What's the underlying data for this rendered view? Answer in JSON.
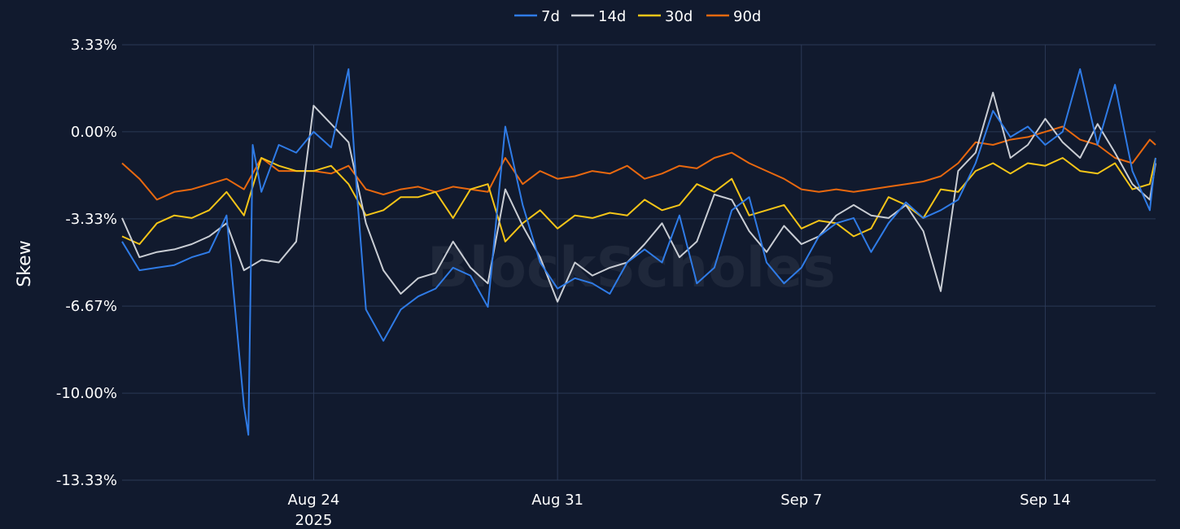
{
  "watermark": "BlockScholes",
  "chart_data": {
    "type": "line",
    "title": "",
    "xlabel": "",
    "ylabel": "Skew",
    "ylim": [
      -13.33,
      3.33
    ],
    "xlim": [
      "2025-08-18T12:00",
      "2025-09-17T04:00"
    ],
    "y_ticks": [
      3.33,
      0.0,
      -3.33,
      -6.67,
      -10.0,
      -13.33
    ],
    "y_tick_labels": [
      "3.33%",
      "0.00%",
      "-3.33%",
      "-6.67%",
      "-10.00%",
      "-13.33%"
    ],
    "x_ticks": [
      "2025-08-24",
      "2025-08-31",
      "2025-09-07",
      "2025-09-14"
    ],
    "x_tick_labels": [
      "Aug 24",
      "Aug 31",
      "Sep 7",
      "Sep 14"
    ],
    "x_tick_sublabel": "2025",
    "grid": true,
    "legend_position": "top-center",
    "colors": {
      "background": "#111a2e",
      "grid": "#2b3956",
      "7d": "#2f7be6",
      "14d": "#c9cdd4",
      "30d": "#f5c518",
      "90d": "#e8680f"
    },
    "series": [
      {
        "name": "7d",
        "x": [
          "2025-08-18T12:00",
          "2025-08-19T00:00",
          "2025-08-19T12:00",
          "2025-08-20T00:00",
          "2025-08-20T12:00",
          "2025-08-21T00:00",
          "2025-08-21T12:00",
          "2025-08-22T00:00",
          "2025-08-22T03:00",
          "2025-08-22T06:00",
          "2025-08-22T12:00",
          "2025-08-23T00:00",
          "2025-08-23T12:00",
          "2025-08-24T00:00",
          "2025-08-24T12:00",
          "2025-08-25T00:00",
          "2025-08-25T06:00",
          "2025-08-25T12:00",
          "2025-08-26T00:00",
          "2025-08-26T12:00",
          "2025-08-27T00:00",
          "2025-08-27T12:00",
          "2025-08-28T00:00",
          "2025-08-28T12:00",
          "2025-08-29T00:00",
          "2025-08-29T12:00",
          "2025-08-30T00:00",
          "2025-08-30T12:00",
          "2025-08-31T00:00",
          "2025-08-31T12:00",
          "2025-09-01T00:00",
          "2025-09-01T12:00",
          "2025-09-02T00:00",
          "2025-09-02T12:00",
          "2025-09-03T00:00",
          "2025-09-03T12:00",
          "2025-09-04T00:00",
          "2025-09-04T12:00",
          "2025-09-05T00:00",
          "2025-09-05T12:00",
          "2025-09-06T00:00",
          "2025-09-06T12:00",
          "2025-09-07T00:00",
          "2025-09-07T12:00",
          "2025-09-08T00:00",
          "2025-09-08T12:00",
          "2025-09-09T00:00",
          "2025-09-09T12:00",
          "2025-09-10T00:00",
          "2025-09-10T12:00",
          "2025-09-11T00:00",
          "2025-09-11T12:00",
          "2025-09-12T00:00",
          "2025-09-12T12:00",
          "2025-09-13T00:00",
          "2025-09-13T12:00",
          "2025-09-14T00:00",
          "2025-09-14T12:00",
          "2025-09-15T00:00",
          "2025-09-15T12:00",
          "2025-09-16T00:00",
          "2025-09-16T12:00",
          "2025-09-17T00:00",
          "2025-09-17T04:00"
        ],
        "values": [
          -4.2,
          -5.3,
          -5.2,
          -5.1,
          -4.8,
          -4.6,
          -3.2,
          -10.5,
          -11.6,
          -0.5,
          -2.3,
          -0.5,
          -0.8,
          0.0,
          -0.6,
          2.4,
          -2.5,
          -6.8,
          -8.0,
          -6.8,
          -6.3,
          -6.0,
          -5.2,
          -5.5,
          -6.7,
          0.2,
          -2.8,
          -5.0,
          -6.0,
          -5.6,
          -5.8,
          -6.2,
          -5.0,
          -4.5,
          -5.0,
          -3.2,
          -5.8,
          -5.2,
          -3.0,
          -2.5,
          -5.0,
          -5.8,
          -5.2,
          -4.0,
          -3.5,
          -3.3,
          -4.6,
          -3.5,
          -2.7,
          -3.3,
          -3.0,
          -2.6,
          -1.2,
          0.8,
          -0.2,
          0.2,
          -0.5,
          0.0,
          2.4,
          -0.5,
          1.8,
          -1.5,
          -3.0,
          -1.0
        ]
      },
      {
        "name": "14d",
        "x": [
          "2025-08-18T12:00",
          "2025-08-19T00:00",
          "2025-08-19T12:00",
          "2025-08-20T00:00",
          "2025-08-20T12:00",
          "2025-08-21T00:00",
          "2025-08-21T12:00",
          "2025-08-22T00:00",
          "2025-08-22T12:00",
          "2025-08-23T00:00",
          "2025-08-23T12:00",
          "2025-08-24T00:00",
          "2025-08-24T12:00",
          "2025-08-25T00:00",
          "2025-08-25T12:00",
          "2025-08-26T00:00",
          "2025-08-26T12:00",
          "2025-08-27T00:00",
          "2025-08-27T12:00",
          "2025-08-28T00:00",
          "2025-08-28T12:00",
          "2025-08-29T00:00",
          "2025-08-29T12:00",
          "2025-08-30T00:00",
          "2025-08-30T12:00",
          "2025-08-31T00:00",
          "2025-08-31T12:00",
          "2025-09-01T00:00",
          "2025-09-01T12:00",
          "2025-09-02T00:00",
          "2025-09-02T12:00",
          "2025-09-03T00:00",
          "2025-09-03T12:00",
          "2025-09-04T00:00",
          "2025-09-04T12:00",
          "2025-09-05T00:00",
          "2025-09-05T12:00",
          "2025-09-06T00:00",
          "2025-09-06T12:00",
          "2025-09-07T00:00",
          "2025-09-07T12:00",
          "2025-09-08T00:00",
          "2025-09-08T12:00",
          "2025-09-09T00:00",
          "2025-09-09T12:00",
          "2025-09-10T00:00",
          "2025-09-10T12:00",
          "2025-09-11T00:00",
          "2025-09-11T12:00",
          "2025-09-12T00:00",
          "2025-09-12T12:00",
          "2025-09-13T00:00",
          "2025-09-13T12:00",
          "2025-09-14T00:00",
          "2025-09-14T12:00",
          "2025-09-15T00:00",
          "2025-09-15T12:00",
          "2025-09-16T00:00",
          "2025-09-16T12:00",
          "2025-09-17T00:00",
          "2025-09-17T04:00"
        ],
        "values": [
          -3.3,
          -4.8,
          -4.6,
          -4.5,
          -4.3,
          -4.0,
          -3.5,
          -5.3,
          -4.9,
          -5.0,
          -4.2,
          1.0,
          0.3,
          -0.4,
          -3.5,
          -5.3,
          -6.2,
          -5.6,
          -5.4,
          -4.2,
          -5.2,
          -5.8,
          -2.2,
          -3.6,
          -4.8,
          -6.5,
          -5.0,
          -5.5,
          -5.2,
          -5.0,
          -4.3,
          -3.5,
          -4.8,
          -4.2,
          -2.4,
          -2.6,
          -3.8,
          -4.6,
          -3.6,
          -4.3,
          -4.0,
          -3.2,
          -2.8,
          -3.2,
          -3.3,
          -2.8,
          -3.8,
          -6.1,
          -1.5,
          -0.8,
          1.5,
          -1.0,
          -0.5,
          0.5,
          -0.4,
          -1.0,
          0.3,
          -0.8,
          -2.0,
          -2.6,
          -1.2
        ]
      },
      {
        "name": "30d",
        "x": [
          "2025-08-18T12:00",
          "2025-08-19T00:00",
          "2025-08-19T12:00",
          "2025-08-20T00:00",
          "2025-08-20T12:00",
          "2025-08-21T00:00",
          "2025-08-21T12:00",
          "2025-08-22T00:00",
          "2025-08-22T12:00",
          "2025-08-23T00:00",
          "2025-08-23T12:00",
          "2025-08-24T00:00",
          "2025-08-24T12:00",
          "2025-08-25T00:00",
          "2025-08-25T12:00",
          "2025-08-26T00:00",
          "2025-08-26T12:00",
          "2025-08-27T00:00",
          "2025-08-27T12:00",
          "2025-08-28T00:00",
          "2025-08-28T12:00",
          "2025-08-29T00:00",
          "2025-08-29T12:00",
          "2025-08-30T00:00",
          "2025-08-30T12:00",
          "2025-08-31T00:00",
          "2025-08-31T12:00",
          "2025-09-01T00:00",
          "2025-09-01T12:00",
          "2025-09-02T00:00",
          "2025-09-02T12:00",
          "2025-09-03T00:00",
          "2025-09-03T12:00",
          "2025-09-04T00:00",
          "2025-09-04T12:00",
          "2025-09-05T00:00",
          "2025-09-05T12:00",
          "2025-09-06T00:00",
          "2025-09-06T12:00",
          "2025-09-07T00:00",
          "2025-09-07T12:00",
          "2025-09-08T00:00",
          "2025-09-08T12:00",
          "2025-09-09T00:00",
          "2025-09-09T12:00",
          "2025-09-10T00:00",
          "2025-09-10T12:00",
          "2025-09-11T00:00",
          "2025-09-11T12:00",
          "2025-09-12T00:00",
          "2025-09-12T12:00",
          "2025-09-13T00:00",
          "2025-09-13T12:00",
          "2025-09-14T00:00",
          "2025-09-14T12:00",
          "2025-09-15T00:00",
          "2025-09-15T12:00",
          "2025-09-16T00:00",
          "2025-09-16T12:00",
          "2025-09-17T00:00",
          "2025-09-17T04:00"
        ],
        "values": [
          -4.0,
          -4.3,
          -3.5,
          -3.2,
          -3.3,
          -3.0,
          -2.3,
          -3.2,
          -1.0,
          -1.3,
          -1.5,
          -1.5,
          -1.3,
          -2.0,
          -3.2,
          -3.0,
          -2.5,
          -2.5,
          -2.3,
          -3.3,
          -2.2,
          -2.0,
          -4.2,
          -3.5,
          -3.0,
          -3.7,
          -3.2,
          -3.3,
          -3.1,
          -3.2,
          -2.6,
          -3.0,
          -2.8,
          -2.0,
          -2.3,
          -1.8,
          -3.2,
          -3.0,
          -2.8,
          -3.7,
          -3.4,
          -3.5,
          -4.0,
          -3.7,
          -2.5,
          -2.8,
          -3.3,
          -2.2,
          -2.3,
          -1.5,
          -1.2,
          -1.6,
          -1.2,
          -1.3,
          -1.0,
          -1.5,
          -1.6,
          -1.2,
          -2.2,
          -2.0,
          -1.0
        ]
      },
      {
        "name": "90d",
        "x": [
          "2025-08-18T12:00",
          "2025-08-19T00:00",
          "2025-08-19T12:00",
          "2025-08-20T00:00",
          "2025-08-20T12:00",
          "2025-08-21T00:00",
          "2025-08-21T12:00",
          "2025-08-22T00:00",
          "2025-08-22T12:00",
          "2025-08-23T00:00",
          "2025-08-23T12:00",
          "2025-08-24T00:00",
          "2025-08-24T12:00",
          "2025-08-25T00:00",
          "2025-08-25T12:00",
          "2025-08-26T00:00",
          "2025-08-26T12:00",
          "2025-08-27T00:00",
          "2025-08-27T12:00",
          "2025-08-28T00:00",
          "2025-08-28T12:00",
          "2025-08-29T00:00",
          "2025-08-29T12:00",
          "2025-08-30T00:00",
          "2025-08-30T12:00",
          "2025-08-31T00:00",
          "2025-08-31T12:00",
          "2025-09-01T00:00",
          "2025-09-01T12:00",
          "2025-09-02T00:00",
          "2025-09-02T12:00",
          "2025-09-03T00:00",
          "2025-09-03T12:00",
          "2025-09-04T00:00",
          "2025-09-04T12:00",
          "2025-09-05T00:00",
          "2025-09-05T12:00",
          "2025-09-06T00:00",
          "2025-09-06T12:00",
          "2025-09-07T00:00",
          "2025-09-07T12:00",
          "2025-09-08T00:00",
          "2025-09-08T12:00",
          "2025-09-09T00:00",
          "2025-09-09T12:00",
          "2025-09-10T00:00",
          "2025-09-10T12:00",
          "2025-09-11T00:00",
          "2025-09-11T12:00",
          "2025-09-12T00:00",
          "2025-09-12T12:00",
          "2025-09-13T00:00",
          "2025-09-13T12:00",
          "2025-09-14T00:00",
          "2025-09-14T12:00",
          "2025-09-15T00:00",
          "2025-09-15T12:00",
          "2025-09-16T00:00",
          "2025-09-16T12:00",
          "2025-09-17T00:00",
          "2025-09-17T04:00"
        ],
        "values": [
          -1.2,
          -1.8,
          -2.6,
          -2.3,
          -2.2,
          -2.0,
          -1.8,
          -2.2,
          -1.0,
          -1.5,
          -1.5,
          -1.5,
          -1.6,
          -1.3,
          -2.2,
          -2.4,
          -2.2,
          -2.1,
          -2.3,
          -2.1,
          -2.2,
          -2.3,
          -1.0,
          -2.0,
          -1.5,
          -1.8,
          -1.7,
          -1.5,
          -1.6,
          -1.3,
          -1.8,
          -1.6,
          -1.3,
          -1.4,
          -1.0,
          -0.8,
          -1.2,
          -1.5,
          -1.8,
          -2.2,
          -2.3,
          -2.2,
          -2.3,
          -2.2,
          -2.1,
          -2.0,
          -1.9,
          -1.7,
          -1.2,
          -0.4,
          -0.5,
          -0.3,
          -0.2,
          0.0,
          0.2,
          -0.3,
          -0.5,
          -1.0,
          -1.2,
          -0.3,
          -0.5
        ]
      }
    ]
  }
}
